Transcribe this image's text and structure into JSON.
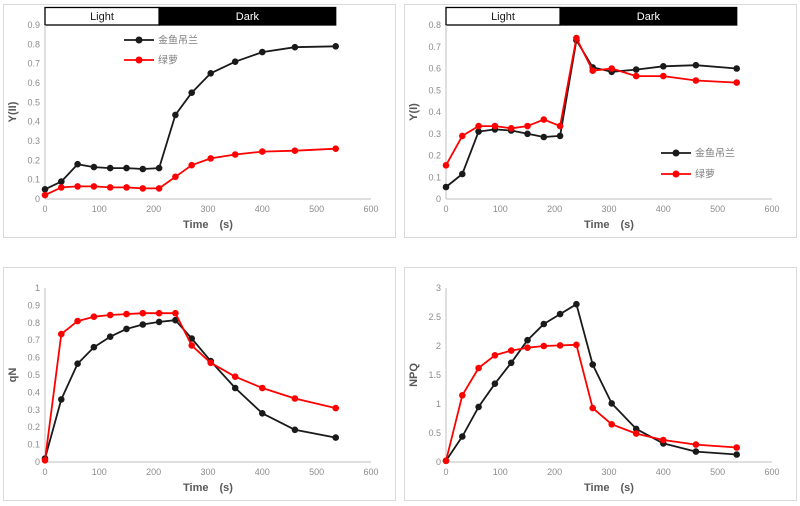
{
  "figure": {
    "description": "Four-panel line chart figure comparing photosynthetic parameters of two plants under light and dark phases",
    "light_label": "Light",
    "dark_label": "Dark",
    "series_names": [
      "金鱼吊兰",
      "绿萝"
    ]
  },
  "colors": {
    "black_series": "#1a1a1a",
    "red_series": "#ff0000",
    "axis_line": "#bfbfbf",
    "tick_label": "#8c8c8c",
    "axis_title": "#595959",
    "legend_text": "#7f7f7f",
    "panel_border": "#d9d9d9",
    "bar_light_bg": "#ffffff",
    "bar_dark_bg": "#000000"
  },
  "chart_data": [
    {
      "id": "y2",
      "type": "line",
      "title": "",
      "ylabel": "Y(II)",
      "xlabel": "Time　(s)",
      "xlim": [
        0,
        600
      ],
      "ylim": [
        0,
        0.9
      ],
      "xticks": [
        0,
        100,
        200,
        300,
        400,
        500,
        600
      ],
      "yticks": [
        "0",
        "0.1",
        "0.2",
        "0.3",
        "0.4",
        "0.5",
        "0.6",
        "0.7",
        "0.8",
        "0.9"
      ],
      "grid": false,
      "legend_position": "top-left",
      "light_dark_bar": {
        "light_label": "Light",
        "dark_label": "Dark",
        "light_range": [
          0,
          210
        ],
        "dark_range": [
          210,
          535
        ]
      },
      "x": [
        0,
        30,
        60,
        90,
        120,
        150,
        180,
        210,
        240,
        270,
        305,
        350,
        400,
        460,
        535
      ],
      "series": [
        {
          "name": "金鱼吊兰",
          "color": "#1a1a1a",
          "values": [
            0.05,
            0.09,
            0.18,
            0.165,
            0.16,
            0.16,
            0.155,
            0.16,
            0.435,
            0.55,
            0.65,
            0.71,
            0.76,
            0.785,
            0.79
          ]
        },
        {
          "name": "绿萝",
          "color": "#ff0000",
          "values": [
            0.02,
            0.06,
            0.065,
            0.065,
            0.06,
            0.06,
            0.055,
            0.055,
            0.115,
            0.175,
            0.21,
            0.23,
            0.245,
            0.25,
            0.26
          ]
        }
      ]
    },
    {
      "id": "y1",
      "type": "line",
      "title": "",
      "ylabel": "Y(I)",
      "xlabel": "Time　(s)",
      "xlim": [
        0,
        600
      ],
      "ylim": [
        0,
        0.8
      ],
      "xticks": [
        0,
        100,
        200,
        300,
        400,
        500,
        600
      ],
      "yticks": [
        "0",
        "0.1",
        "0.2",
        "0.3",
        "0.4",
        "0.5",
        "0.6",
        "0.7",
        "0.8"
      ],
      "grid": false,
      "legend_position": "bottom-right",
      "light_dark_bar": {
        "light_label": "Light",
        "dark_label": "Dark",
        "light_range": [
          0,
          210
        ],
        "dark_range": [
          210,
          535
        ]
      },
      "x": [
        0,
        30,
        60,
        90,
        120,
        150,
        180,
        210,
        240,
        270,
        305,
        350,
        400,
        460,
        535
      ],
      "series": [
        {
          "name": "金鱼吊兰",
          "color": "#1a1a1a",
          "values": [
            0.055,
            0.115,
            0.31,
            0.32,
            0.315,
            0.3,
            0.285,
            0.29,
            0.73,
            0.605,
            0.585,
            0.595,
            0.61,
            0.615,
            0.6
          ]
        },
        {
          "name": "绿萝",
          "color": "#ff0000",
          "values": [
            0.155,
            0.29,
            0.335,
            0.335,
            0.325,
            0.335,
            0.365,
            0.335,
            0.74,
            0.59,
            0.6,
            0.565,
            0.565,
            0.545,
            0.535
          ]
        }
      ]
    },
    {
      "id": "qn",
      "type": "line",
      "title": "",
      "ylabel": "qN",
      "xlabel": "Time　(s)",
      "xlim": [
        0,
        600
      ],
      "ylim": [
        0,
        1
      ],
      "xticks": [
        0,
        100,
        200,
        300,
        400,
        500,
        600
      ],
      "yticks": [
        "0",
        "0.1",
        "0.2",
        "0.3",
        "0.4",
        "0.5",
        "0.6",
        "0.7",
        "0.8",
        "0.9",
        "1"
      ],
      "grid": false,
      "legend_position": null,
      "light_dark_bar": null,
      "x": [
        0,
        30,
        60,
        90,
        120,
        150,
        180,
        210,
        240,
        270,
        305,
        350,
        400,
        460,
        535
      ],
      "series": [
        {
          "name": "金鱼吊兰",
          "color": "#1a1a1a",
          "values": [
            0.02,
            0.36,
            0.565,
            0.66,
            0.72,
            0.765,
            0.79,
            0.805,
            0.815,
            0.71,
            0.58,
            0.425,
            0.28,
            0.185,
            0.14
          ]
        },
        {
          "name": "绿萝",
          "color": "#ff0000",
          "values": [
            0.01,
            0.735,
            0.81,
            0.835,
            0.845,
            0.85,
            0.855,
            0.855,
            0.855,
            0.67,
            0.57,
            0.49,
            0.425,
            0.365,
            0.31
          ]
        }
      ]
    },
    {
      "id": "npq",
      "type": "line",
      "title": "",
      "ylabel": "NPQ",
      "xlabel": "Time　(s)",
      "xlim": [
        0,
        600
      ],
      "ylim": [
        0,
        3
      ],
      "xticks": [
        0,
        100,
        200,
        300,
        400,
        500,
        600
      ],
      "yticks": [
        "0",
        "0.5",
        "1",
        "1.5",
        "2",
        "2.5",
        "3"
      ],
      "grid": false,
      "legend_position": null,
      "light_dark_bar": null,
      "x": [
        0,
        30,
        60,
        90,
        120,
        150,
        180,
        210,
        240,
        270,
        305,
        350,
        400,
        460,
        535
      ],
      "series": [
        {
          "name": "金鱼吊兰",
          "color": "#1a1a1a",
          "values": [
            0.02,
            0.44,
            0.95,
            1.35,
            1.71,
            2.1,
            2.38,
            2.55,
            2.72,
            1.68,
            1.01,
            0.57,
            0.32,
            0.18,
            0.13
          ]
        },
        {
          "name": "绿萝",
          "color": "#ff0000",
          "values": [
            0.02,
            1.15,
            1.62,
            1.84,
            1.92,
            1.97,
            2.0,
            2.01,
            2.02,
            0.93,
            0.65,
            0.49,
            0.38,
            0.3,
            0.25
          ]
        }
      ]
    }
  ]
}
